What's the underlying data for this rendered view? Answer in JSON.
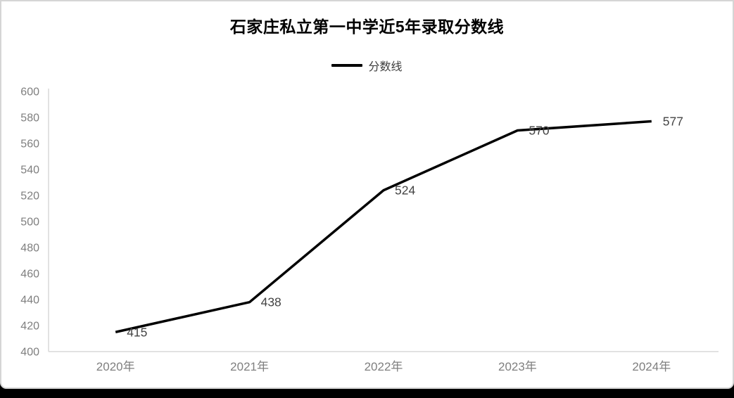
{
  "window": {
    "background_color": "#000000",
    "card_background": "#ffffff",
    "card_border_color": "#d5d5d5"
  },
  "chart_data": {
    "type": "line",
    "title": "石家庄私立第一中学近5年录取分数线",
    "categories": [
      "2020年",
      "2021年",
      "2022年",
      "2023年",
      "2024年"
    ],
    "series": [
      {
        "name": "分数线",
        "values": [
          415,
          438,
          524,
          570,
          577
        ]
      }
    ],
    "xlabel": "",
    "ylabel": "",
    "ylim": [
      400,
      600
    ],
    "ytick_step": 20,
    "yticks": [
      400,
      420,
      440,
      460,
      480,
      500,
      520,
      540,
      560,
      580,
      600
    ],
    "grid": false,
    "legend_position": "top-center",
    "data_labels_visible": true,
    "colors": {
      "series_line": "#000000",
      "axis_line": "#d9d9d9",
      "tick_label": "#7f7f7f",
      "data_label": "#434343",
      "title": "#000000",
      "legend_text": "#3d3d3d"
    }
  }
}
